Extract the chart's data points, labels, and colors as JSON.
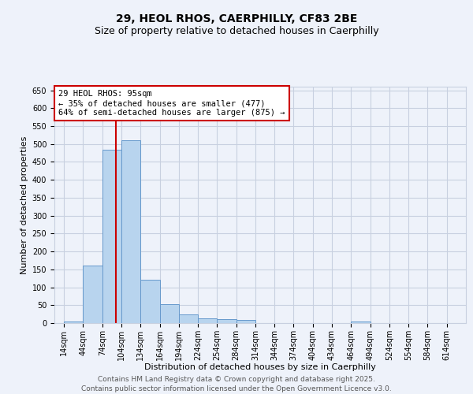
{
  "title_line1": "29, HEOL RHOS, CAERPHILLY, CF83 2BE",
  "title_line2": "Size of property relative to detached houses in Caerphilly",
  "xlabel": "Distribution of detached houses by size in Caerphilly",
  "ylabel": "Number of detached properties",
  "footer_line1": "Contains HM Land Registry data © Crown copyright and database right 2025.",
  "footer_line2": "Contains public sector information licensed under the Open Government Licence v3.0.",
  "annotation_line1": "29 HEOL RHOS: 95sqm",
  "annotation_line2": "← 35% of detached houses are smaller (477)",
  "annotation_line3": "64% of semi-detached houses are larger (875) →",
  "bar_starts": [
    14,
    44,
    74,
    104,
    134,
    164,
    194,
    224,
    254,
    284,
    314,
    344,
    374,
    404,
    434,
    464,
    494,
    524,
    554,
    584
  ],
  "bar_values": [
    5,
    160,
    483,
    510,
    120,
    52,
    25,
    13,
    11,
    8,
    0,
    0,
    0,
    0,
    0,
    4,
    0,
    0,
    0,
    0
  ],
  "bar_color": "#b8d4ee",
  "bar_edge_color": "#6699cc",
  "bg_color": "#eef2fa",
  "grid_color": "#c8d0e0",
  "redline_x": 95,
  "ylim": [
    0,
    660
  ],
  "yticks": [
    0,
    50,
    100,
    150,
    200,
    250,
    300,
    350,
    400,
    450,
    500,
    550,
    600,
    650
  ],
  "annotation_box_color": "#ffffff",
  "annotation_box_edge": "#cc0000",
  "redline_color": "#cc0000",
  "title_fontsize": 10,
  "subtitle_fontsize": 9,
  "axis_label_fontsize": 8,
  "tick_fontsize": 7,
  "annotation_fontsize": 7.5,
  "footer_fontsize": 6.5
}
